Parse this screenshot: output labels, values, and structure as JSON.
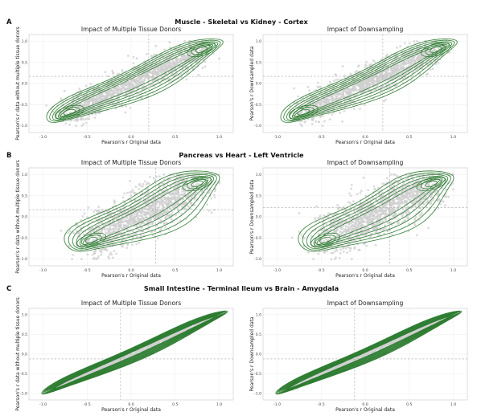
{
  "figure": {
    "rows": [
      {
        "letter": "A",
        "title": "Muscle - Skeletal vs Kidney - Cortex"
      },
      {
        "letter": "B",
        "title": "Pancreas vs Heart - Left Ventricle"
      },
      {
        "letter": "C",
        "title": "Small Intestine - Terminal Ileum vs Brain - Amygdala"
      }
    ]
  },
  "chart_data": [
    {
      "type": "scatter",
      "row": "A",
      "title": "Impact of Multiple Tissue Donors",
      "xlabel": "Pearson's r Original data",
      "ylabel": "Pearson's r data without multiple tissue donors",
      "xlim": [
        -1.0,
        1.0
      ],
      "ylim": [
        -1.0,
        1.0
      ],
      "xticks": [
        "-1.0",
        "-0.5",
        "0.0",
        "0.5",
        "1.0"
      ],
      "yticks": [
        "-1.0",
        "-0.5",
        "0.0",
        "0.5",
        "1.0"
      ],
      "hline": 0.17,
      "vline": 0.2,
      "points_color": "#cfcfcf",
      "contour_color": "#2e7d32",
      "density_modes": [
        [
          -0.7,
          -0.68
        ],
        [
          0.8,
          0.8
        ]
      ],
      "spread": 0.17
    },
    {
      "type": "scatter",
      "row": "A",
      "title": "Impact of Downsampling",
      "xlabel": "Pearson's r Original data",
      "ylabel": "Pearson's r Downsampled data",
      "xlim": [
        -1.0,
        1.0
      ],
      "ylim": [
        -1.0,
        1.0
      ],
      "xticks": [
        "-1.0",
        "-0.5",
        "0.0",
        "0.5",
        "1.0"
      ],
      "yticks": [
        "-1.0",
        "-0.5",
        "0.0",
        "0.5",
        "1.0"
      ],
      "hline": 0.17,
      "vline": 0.2,
      "points_color": "#cfcfcf",
      "contour_color": "#2e7d32",
      "density_modes": [
        [
          -0.7,
          -0.68
        ],
        [
          0.8,
          0.8
        ]
      ],
      "spread": 0.17
    },
    {
      "type": "scatter",
      "row": "B",
      "title": "Impact of Multiple Tissue Donors",
      "xlabel": "Pearson's r Original data",
      "ylabel": "Pearson's r data without multiple tissue donors",
      "xlim": [
        -1.0,
        1.0
      ],
      "ylim": [
        -1.0,
        1.0
      ],
      "xticks": [
        "-1.0",
        "-0.5",
        "0.0",
        "0.5",
        "1.0"
      ],
      "yticks": [
        "-1.0",
        "-0.5",
        "0.0",
        "0.5",
        "1.0"
      ],
      "hline": 0.17,
      "vline": 0.28,
      "points_color": "#cfcfcf",
      "contour_color": "#2e7d32",
      "density_modes": [
        [
          -0.45,
          -0.55
        ],
        [
          0.75,
          0.78
        ]
      ],
      "spread": 0.26
    },
    {
      "type": "scatter",
      "row": "B",
      "title": "Impact of Downsampling",
      "xlabel": "Pearson's r Original data",
      "ylabel": "Pearson's r Downsampled data",
      "xlim": [
        -1.0,
        1.0
      ],
      "ylim": [
        -1.0,
        1.0
      ],
      "xticks": [
        "-1.0",
        "-0.5",
        "0.0",
        "0.5",
        "1.0"
      ],
      "yticks": [
        "-1.0",
        "-0.5",
        "0.0",
        "0.5",
        "1.0"
      ],
      "hline": 0.22,
      "vline": 0.28,
      "points_color": "#cfcfcf",
      "contour_color": "#2e7d32",
      "density_modes": [
        [
          -0.45,
          -0.55
        ],
        [
          0.75,
          0.78
        ]
      ],
      "spread": 0.26
    },
    {
      "type": "scatter",
      "row": "C",
      "title": "Impact of Multiple Tissue Donors",
      "xlabel": "Pearson's r Original data",
      "ylabel": "Pearson's r data without multiple tissue donors",
      "xlim": [
        -1.0,
        1.0
      ],
      "ylim": [
        -1.0,
        1.0
      ],
      "xticks": [
        "-1.0",
        "-0.5",
        "0.0",
        "0.5",
        "1.0"
      ],
      "yticks": [
        "-1.0",
        "-0.5",
        "0.0",
        "0.5",
        "1.0"
      ],
      "hline": -0.12,
      "vline": -0.12,
      "points_color": "#cfcfcf",
      "contour_color": "#2e7d32",
      "density_modes": [
        [
          -0.82,
          -0.82
        ],
        [
          0.9,
          0.9
        ]
      ],
      "spread": 0.035
    },
    {
      "type": "scatter",
      "row": "C",
      "title": "Impact of Downsampling",
      "xlabel": "Pearson's r Original data",
      "ylabel": "Pearson's r Downsampled data",
      "xlim": [
        -1.0,
        1.0
      ],
      "ylim": [
        -1.0,
        1.0
      ],
      "xticks": [
        "-1.0",
        "-0.5",
        "0.0",
        "0.5",
        "1.0"
      ],
      "yticks": [
        "-1.0",
        "-0.5",
        "0.0",
        "0.5",
        "1.0"
      ],
      "hline": -0.12,
      "vline": -0.12,
      "points_color": "#cfcfcf",
      "contour_color": "#2e7d32",
      "density_modes": [
        [
          -0.82,
          -0.82
        ],
        [
          0.9,
          0.9
        ]
      ],
      "spread": 0.035
    }
  ]
}
